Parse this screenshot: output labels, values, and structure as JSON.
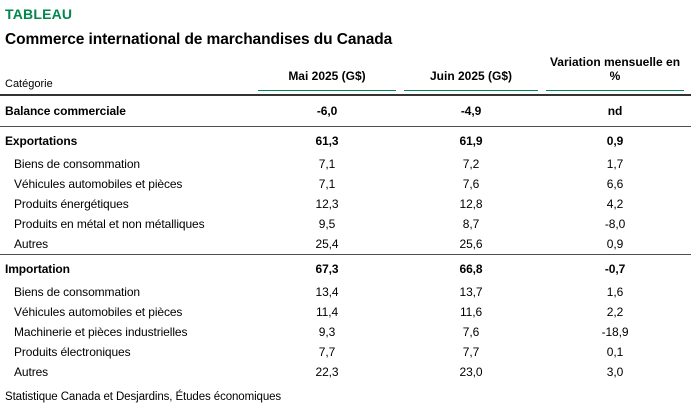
{
  "header": {
    "kicker": "TABLEAU",
    "title": "Commerce international de marchandises du Canada"
  },
  "table": {
    "category_label": "Catégorie",
    "columns": [
      "Mai 2025 (G$)",
      "Juin 2025 (G$)",
      "Variation mensuelle en %"
    ],
    "rows": [
      {
        "label": "Balance commerciale",
        "mai": "-6,0",
        "juin": "-4,9",
        "variation": "nd"
      },
      {
        "label": "Exportations",
        "mai": "61,3",
        "juin": "61,9",
        "variation": "0,9"
      },
      {
        "label": "Biens de consommation",
        "mai": "7,1",
        "juin": "7,2",
        "variation": "1,7"
      },
      {
        "label": "Véhicules automobiles et pièces",
        "mai": "7,1",
        "juin": "7,6",
        "variation": "6,6"
      },
      {
        "label": "Produits énergétiques",
        "mai": "12,3",
        "juin": "12,8",
        "variation": "4,2"
      },
      {
        "label": "Produits en métal et non métalliques",
        "mai": "9,5",
        "juin": "8,7",
        "variation": "-8,0"
      },
      {
        "label": "Autres",
        "mai": "25,4",
        "juin": "25,6",
        "variation": "0,9"
      },
      {
        "label": "Importation",
        "mai": "67,3",
        "juin": "66,8",
        "variation": "-0,7"
      },
      {
        "label": "Biens de consommation",
        "mai": "13,4",
        "juin": "13,7",
        "variation": "1,6"
      },
      {
        "label": "Véhicules automobiles et pièces",
        "mai": "11,4",
        "juin": "11,6",
        "variation": "2,2"
      },
      {
        "label": "Machinerie et pièces industrielles",
        "mai": "9,3",
        "juin": "7,6",
        "variation": "-18,9"
      },
      {
        "label": "Produits électroniques",
        "mai": "7,7",
        "juin": "7,7",
        "variation": "0,1"
      },
      {
        "label": "Autres",
        "mai": "22,3",
        "juin": "23,0",
        "variation": "3,0"
      }
    ]
  },
  "footer": {
    "source": "Statistique Canada et Desjardins, Études économiques"
  },
  "colors": {
    "accent_green": "#00874E",
    "rule_dark": "#333333",
    "rule_separator": "#4d4d4d"
  },
  "chart_data": {
    "type": "table",
    "title": "Commerce international de marchandises du Canada",
    "columns": [
      "Catégorie",
      "Mai 2025 (G$)",
      "Juin 2025 (G$)",
      "Variation mensuelle en %"
    ],
    "rows": [
      {
        "label": "Balance commerciale",
        "mai_2025_gs": -6.0,
        "juin_2025_gs": -4.9,
        "variation_mensuelle_pct": "nd"
      },
      {
        "label": "Exportations",
        "mai_2025_gs": 61.3,
        "juin_2025_gs": 61.9,
        "variation_mensuelle_pct": 0.9
      },
      {
        "label": "Biens de consommation",
        "mai_2025_gs": 7.1,
        "juin_2025_gs": 7.2,
        "variation_mensuelle_pct": 1.7
      },
      {
        "label": "Véhicules automobiles et pièces",
        "mai_2025_gs": 7.1,
        "juin_2025_gs": 7.6,
        "variation_mensuelle_pct": 6.6
      },
      {
        "label": "Produits énergétiques",
        "mai_2025_gs": 12.3,
        "juin_2025_gs": 12.8,
        "variation_mensuelle_pct": 4.2
      },
      {
        "label": "Produits en métal et non métalliques",
        "mai_2025_gs": 9.5,
        "juin_2025_gs": 8.7,
        "variation_mensuelle_pct": -8.0
      },
      {
        "label": "Autres",
        "mai_2025_gs": 25.4,
        "juin_2025_gs": 25.6,
        "variation_mensuelle_pct": 0.9
      },
      {
        "label": "Importation",
        "mai_2025_gs": 67.3,
        "juin_2025_gs": 66.8,
        "variation_mensuelle_pct": -0.7
      },
      {
        "label": "Biens de consommation",
        "mai_2025_gs": 13.4,
        "juin_2025_gs": 13.7,
        "variation_mensuelle_pct": 1.6
      },
      {
        "label": "Véhicules automobiles et pièces",
        "mai_2025_gs": 11.4,
        "juin_2025_gs": 11.6,
        "variation_mensuelle_pct": 2.2
      },
      {
        "label": "Machinerie et pièces industrielles",
        "mai_2025_gs": 9.3,
        "juin_2025_gs": 7.6,
        "variation_mensuelle_pct": -18.9
      },
      {
        "label": "Produits électroniques",
        "mai_2025_gs": 7.7,
        "juin_2025_gs": 7.7,
        "variation_mensuelle_pct": 0.1
      },
      {
        "label": "Autres",
        "mai_2025_gs": 22.3,
        "juin_2025_gs": 23.0,
        "variation_mensuelle_pct": 3.0
      }
    ]
  }
}
